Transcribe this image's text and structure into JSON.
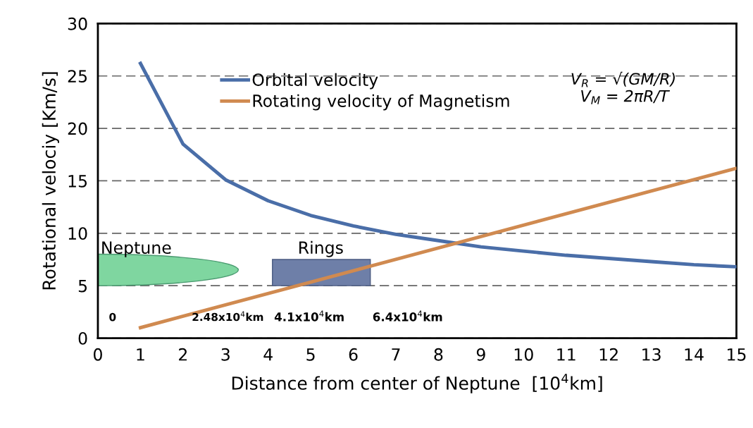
{
  "chart_data": {
    "type": "line",
    "xlabel": "Distance from center of Neptune  [10$^{4}$km]",
    "ylabel": "Rotational velociy [Km/s]",
    "series": [
      {
        "name": "Orbital velocity",
        "color": "#4a6ea8",
        "x": [
          1,
          2,
          3,
          4,
          5,
          6,
          7,
          8,
          9,
          10,
          11,
          12,
          13,
          14,
          15
        ],
        "values": [
          26.2,
          18.5,
          15.1,
          13.1,
          11.7,
          10.7,
          9.9,
          9.3,
          8.7,
          8.3,
          7.9,
          7.6,
          7.3,
          7.0,
          6.8
        ]
      },
      {
        "name": "Rotating velocity of Magnetism",
        "color": "#d08a50",
        "x": [
          1,
          15
        ],
        "values": [
          1.0,
          16.2
        ]
      }
    ],
    "xlim": [
      0,
      15
    ],
    "xticks": [
      0,
      1,
      2,
      3,
      4,
      5,
      6,
      7,
      8,
      9,
      10,
      11,
      12,
      13,
      14,
      15
    ],
    "ylim": [
      0,
      30
    ],
    "yticks": [
      0,
      5,
      10,
      15,
      20,
      25,
      30
    ],
    "grid": "y",
    "legend": "top",
    "marker": "none",
    "line_style": "solid",
    "annotations": [
      "V$_{R}$ = √(GM/R)",
      "V$_{M}$ = 2πR/T",
      "Neptune",
      "Rings",
      "0",
      "2.48x10$^{4}$km",
      "4.1x10$^{4}$km",
      "6.4x10$^{4}$km"
    ]
  }
}
